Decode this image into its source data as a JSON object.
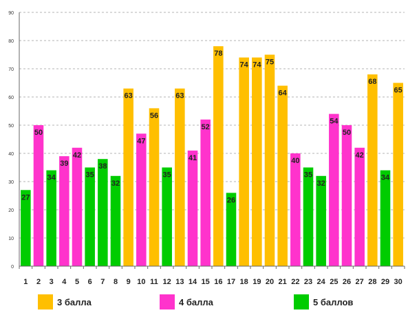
{
  "colors": {
    "3": "#FFBF00",
    "4": "#FF33CC",
    "5": "#00CC00"
  },
  "legend": [
    {
      "key": "3",
      "label": "3 балла"
    },
    {
      "key": "4",
      "label": "4 балла"
    },
    {
      "key": "5",
      "label": "5 баллов"
    }
  ],
  "chart_data": {
    "type": "bar",
    "title": "",
    "xlabel": "",
    "ylabel": "",
    "ylim": [
      0,
      90
    ],
    "yticks": [
      0,
      10,
      20,
      30,
      40,
      50,
      60,
      70,
      80,
      90
    ],
    "grid": true,
    "categories": [
      "1",
      "2",
      "3",
      "4",
      "5",
      "6",
      "7",
      "8",
      "9",
      "10",
      "11",
      "12",
      "13",
      "14",
      "15",
      "16",
      "17",
      "18",
      "19",
      "20",
      "21",
      "22",
      "23",
      "24",
      "25",
      "26",
      "27",
      "28",
      "29",
      "30"
    ],
    "values": [
      27,
      50,
      34,
      39,
      42,
      35,
      38,
      32,
      63,
      47,
      56,
      35,
      63,
      41,
      52,
      78,
      26,
      74,
      74,
      75,
      64,
      40,
      35,
      32,
      54,
      50,
      42,
      68,
      34,
      65
    ],
    "groups": [
      "5",
      "4",
      "5",
      "4",
      "4",
      "5",
      "5",
      "5",
      "3",
      "4",
      "3",
      "5",
      "3",
      "4",
      "4",
      "3",
      "5",
      "3",
      "3",
      "3",
      "3",
      "4",
      "5",
      "5",
      "4",
      "4",
      "4",
      "3",
      "5",
      "3"
    ]
  }
}
